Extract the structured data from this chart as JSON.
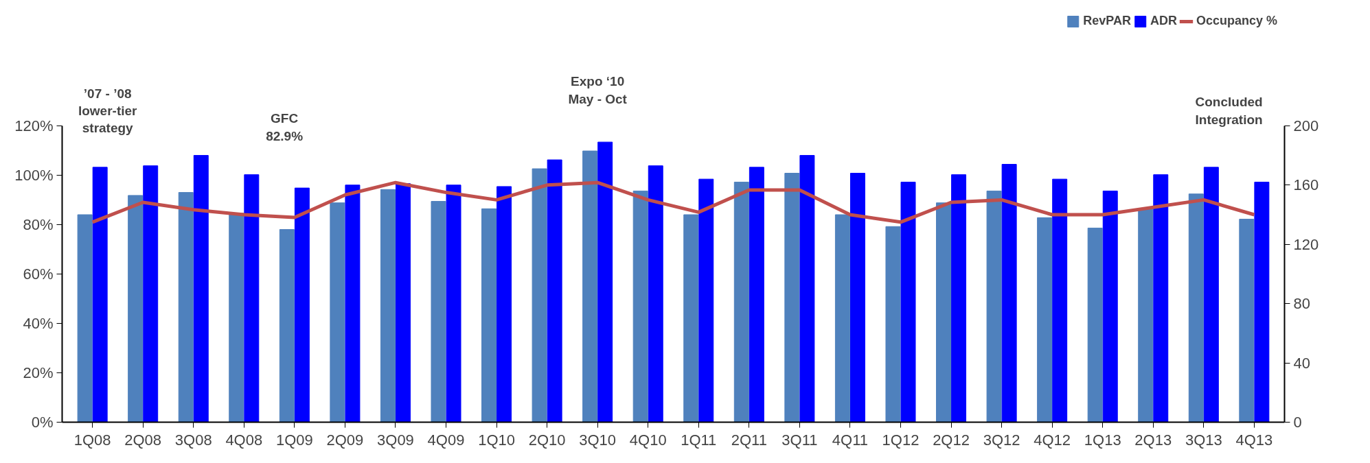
{
  "chart_data": {
    "type": "bar",
    "categories": [
      "1Q08",
      "2Q08",
      "3Q08",
      "4Q08",
      "1Q09",
      "2Q09",
      "3Q09",
      "4Q09",
      "1Q10",
      "2Q10",
      "3Q10",
      "4Q10",
      "1Q11",
      "2Q11",
      "3Q11",
      "4Q11",
      "1Q12",
      "2Q12",
      "3Q12",
      "4Q12",
      "1Q13",
      "2Q13",
      "3Q13",
      "4Q13"
    ],
    "series": [
      {
        "name": "RevPAR",
        "axis": "y2",
        "color": "#4f81bd",
        "values": [
          140,
          153,
          155,
          141,
          130,
          148,
          157,
          149,
          144,
          171,
          183,
          156,
          140,
          162,
          168,
          140,
          132,
          148,
          156,
          138,
          131,
          144,
          154,
          137
        ]
      },
      {
        "name": "ADR",
        "axis": "y2",
        "color": "#0000ff",
        "values": [
          172,
          173,
          180,
          167,
          158,
          160,
          161,
          160,
          159,
          177,
          189,
          173,
          164,
          172,
          180,
          168,
          162,
          167,
          174,
          164,
          156,
          167,
          172,
          162
        ]
      },
      {
        "name": "Occupancy %",
        "type": "line",
        "axis": "y",
        "color": "#c0504d",
        "values": [
          81,
          89,
          86,
          84,
          82.9,
          92,
          97,
          93,
          90,
          96,
          97,
          90,
          85,
          94,
          94,
          84,
          81,
          89,
          90,
          84,
          84,
          87,
          90,
          84
        ]
      }
    ],
    "ylim": [
      0,
      120
    ],
    "yticks": [
      {
        "value": 0,
        "label": "0%"
      },
      {
        "value": 20,
        "label": "20%"
      },
      {
        "value": 40,
        "label": "40%"
      },
      {
        "value": 60,
        "label": "60%"
      },
      {
        "value": 80,
        "label": "80%"
      },
      {
        "value": 100,
        "label": "100%"
      },
      {
        "value": 120,
        "label": "120%"
      }
    ],
    "y2lim": [
      0,
      200
    ],
    "y2ticks": [
      0,
      40,
      80,
      120,
      160,
      200
    ],
    "grid": false,
    "legend": "top right",
    "annotations": [
      "’07 - ’08\nlower-tier\nstrategy",
      "GFC\n82.9%",
      "Expo ‘10\nMay - Oct",
      "Concluded\nIntegration"
    ]
  }
}
